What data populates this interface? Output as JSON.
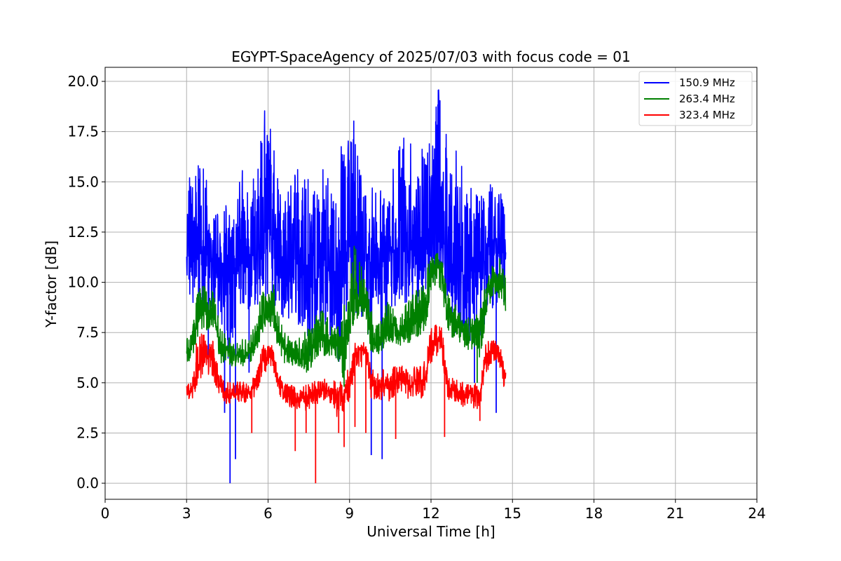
{
  "chart_data": {
    "type": "line",
    "title": "EGYPT-SpaceAgency of 2025/07/03 with focus code = 01",
    "xlabel": "Universal Time [h]",
    "ylabel": "Y-factor [dB]",
    "xlim": [
      0,
      24
    ],
    "ylim": [
      -0.8,
      20.7
    ],
    "xticks": [
      0,
      3,
      6,
      9,
      12,
      15,
      18,
      21,
      24
    ],
    "xtick_labels": [
      "0",
      "3",
      "6",
      "9",
      "12",
      "15",
      "18",
      "21",
      "24"
    ],
    "yticks": [
      0,
      2.5,
      5,
      7.5,
      10,
      12.5,
      15,
      17.5,
      20
    ],
    "ytick_labels": [
      "0.0",
      "2.5",
      "5.0",
      "7.5",
      "10.0",
      "12.5",
      "15.0",
      "17.5",
      "20.0"
    ],
    "grid": true,
    "legend_position": "top-right",
    "series": [
      {
        "name": "150.9 MHz",
        "color": "#0000ff",
        "x": [
          3.0,
          3.1,
          3.2,
          3.4,
          3.6,
          3.8,
          4.0,
          4.2,
          4.4,
          4.6,
          4.8,
          5.0,
          5.2,
          5.4,
          5.6,
          5.8,
          6.0,
          6.2,
          6.4,
          6.6,
          6.8,
          7.0,
          7.2,
          7.4,
          7.6,
          7.8,
          8.0,
          8.2,
          8.4,
          8.6,
          8.8,
          9.0,
          9.2,
          9.4,
          9.6,
          9.8,
          10.0,
          10.2,
          10.4,
          10.6,
          10.8,
          11.0,
          11.2,
          11.4,
          11.6,
          11.8,
          12.0,
          12.2,
          12.4,
          12.6,
          12.8,
          13.0,
          13.2,
          13.4,
          13.6,
          13.8,
          14.0,
          14.2,
          14.4,
          14.6,
          14.75
        ],
        "mean": [
          11.5,
          12.2,
          12.0,
          11.8,
          11.6,
          11.5,
          11.0,
          10.8,
          11.0,
          10.5,
          11.2,
          11.6,
          11.2,
          11.5,
          11.8,
          12.0,
          12.5,
          12.2,
          11.6,
          11.0,
          10.8,
          11.2,
          11.0,
          10.8,
          10.5,
          10.6,
          11.0,
          10.8,
          10.5,
          10.2,
          11.0,
          11.8,
          12.0,
          11.5,
          11.2,
          11.0,
          11.3,
          11.0,
          11.2,
          11.5,
          11.8,
          12.0,
          12.2,
          11.8,
          11.5,
          12.0,
          12.5,
          12.8,
          12.3,
          11.8,
          11.2,
          10.8,
          10.5,
          10.6,
          10.8,
          10.5,
          11.5,
          12.0,
          12.2,
          11.8,
          11.5
        ],
        "upper": [
          13.5,
          15.6,
          14.5,
          16.7,
          15.8,
          15.5,
          14.2,
          13.0,
          14.4,
          13.8,
          13.5,
          15.9,
          14.6,
          15.0,
          16.6,
          18.5,
          18.6,
          17.0,
          15.0,
          14.8,
          14.4,
          16.5,
          14.5,
          16.0,
          14.0,
          15.3,
          16.5,
          15.5,
          14.2,
          15.0,
          18.8,
          16.5,
          19.0,
          15.8,
          14.5,
          14.5,
          15.8,
          14.2,
          14.5,
          15.6,
          16.5,
          17.5,
          17.3,
          15.6,
          16.0,
          18.1,
          17.0,
          19.7,
          19.4,
          16.8,
          15.0,
          18.6,
          14.2,
          14.5,
          15.0,
          14.2,
          14.5,
          15.0,
          15.2,
          14.8,
          13.0
        ],
        "lower": [
          10.0,
          9.5,
          9.0,
          9.0,
          8.6,
          8.5,
          8.5,
          8.0,
          7.5,
          5.5,
          8.0,
          9.0,
          8.5,
          9.0,
          8.7,
          9.0,
          9.5,
          9.0,
          8.5,
          7.8,
          8.0,
          7.7,
          8.0,
          7.5,
          6.0,
          7.0,
          8.0,
          7.5,
          7.2,
          6.0,
          7.5,
          9.0,
          8.5,
          8.5,
          7.5,
          7.0,
          8.0,
          7.5,
          8.0,
          8.5,
          8.8,
          9.0,
          9.0,
          8.5,
          8.0,
          9.5,
          9.0,
          10.0,
          9.5,
          8.5,
          7.5,
          7.5,
          7.0,
          7.0,
          7.5,
          7.0,
          8.0,
          8.5,
          9.0,
          8.5,
          9.0
        ],
        "dips": [
          [
            4.6,
            0.0
          ],
          [
            4.8,
            1.2
          ],
          [
            9.8,
            1.4
          ],
          [
            10.2,
            1.2
          ],
          [
            3.8,
            6.0
          ],
          [
            4.4,
            3.5
          ],
          [
            14.4,
            3.5
          ],
          [
            13.6,
            5.0
          ],
          [
            5.3,
            5.5
          ]
        ]
      },
      {
        "name": "263.4 MHz",
        "color": "#008000",
        "x": [
          3.0,
          3.2,
          3.4,
          3.6,
          3.8,
          4.0,
          4.2,
          4.4,
          4.6,
          4.8,
          5.0,
          5.2,
          5.4,
          5.6,
          5.8,
          6.0,
          6.2,
          6.4,
          6.6,
          6.8,
          7.0,
          7.2,
          7.4,
          7.6,
          7.8,
          8.0,
          8.2,
          8.4,
          8.6,
          8.8,
          9.0,
          9.2,
          9.4,
          9.6,
          9.8,
          10.0,
          10.2,
          10.4,
          10.6,
          10.8,
          11.0,
          11.2,
          11.4,
          11.6,
          11.8,
          12.0,
          12.2,
          12.4,
          12.6,
          12.8,
          13.0,
          13.2,
          13.4,
          13.6,
          13.8,
          14.0,
          14.2,
          14.4,
          14.6,
          14.75
        ],
        "mean": [
          6.5,
          6.8,
          8.0,
          8.6,
          8.5,
          8.2,
          7.0,
          6.5,
          6.5,
          6.4,
          6.3,
          6.4,
          6.6,
          7.5,
          8.2,
          8.5,
          8.6,
          7.5,
          6.8,
          6.4,
          6.3,
          6.4,
          6.5,
          6.6,
          6.9,
          7.2,
          7.0,
          6.8,
          7.0,
          7.3,
          8.0,
          9.2,
          9.6,
          8.8,
          7.5,
          6.8,
          7.2,
          7.5,
          7.6,
          7.5,
          7.6,
          7.8,
          8.0,
          8.2,
          8.5,
          10.6,
          10.8,
          10.5,
          8.2,
          8.0,
          7.8,
          7.5,
          7.3,
          7.4,
          7.5,
          9.0,
          10.0,
          10.2,
          10.0,
          9.5
        ],
        "upper": [
          7.2,
          7.5,
          9.5,
          10.0,
          9.8,
          9.5,
          8.0,
          7.5,
          7.2,
          7.0,
          7.2,
          7.2,
          7.4,
          8.5,
          9.6,
          9.3,
          9.9,
          8.5,
          7.6,
          7.2,
          7.1,
          7.3,
          7.6,
          7.8,
          8.4,
          8.6,
          8.5,
          7.6,
          8.0,
          9.0,
          9.5,
          12.4,
          11.0,
          10.0,
          8.8,
          8.0,
          8.6,
          9.0,
          8.8,
          8.7,
          8.8,
          9.1,
          9.5,
          9.8,
          10.2,
          11.8,
          11.5,
          11.2,
          9.5,
          9.1,
          8.7,
          8.5,
          8.2,
          8.3,
          8.5,
          10.0,
          10.6,
          11.5,
          11.0,
          10.5
        ],
        "lower": [
          6.0,
          6.2,
          7.2,
          7.8,
          7.5,
          7.0,
          6.0,
          6.0,
          5.8,
          5.8,
          5.8,
          5.9,
          6.0,
          6.5,
          7.5,
          7.8,
          7.8,
          6.5,
          6.0,
          5.8,
          5.9,
          5.8,
          5.5,
          5.8,
          6.0,
          6.4,
          6.2,
          6.2,
          6.0,
          5.0,
          7.0,
          8.0,
          8.5,
          7.8,
          6.5,
          6.2,
          6.6,
          6.8,
          6.8,
          6.8,
          7.0,
          7.0,
          7.2,
          7.4,
          7.6,
          9.5,
          10.0,
          9.5,
          7.5,
          7.2,
          7.0,
          6.8,
          6.5,
          6.7,
          5.8,
          8.0,
          9.0,
          9.5,
          9.0,
          8.5
        ],
        "dips": [
          [
            8.8,
            4.8
          ],
          [
            13.7,
            5.0
          ]
        ]
      },
      {
        "name": "323.4 MHz",
        "color": "#ff0000",
        "x": [
          3.0,
          3.2,
          3.4,
          3.6,
          3.8,
          4.0,
          4.2,
          4.4,
          4.6,
          4.8,
          5.0,
          5.2,
          5.4,
          5.6,
          5.8,
          6.0,
          6.2,
          6.4,
          6.6,
          6.8,
          7.0,
          7.2,
          7.4,
          7.6,
          7.8,
          8.0,
          8.2,
          8.4,
          8.6,
          8.8,
          9.0,
          9.2,
          9.4,
          9.6,
          9.8,
          10.0,
          10.2,
          10.4,
          10.6,
          10.8,
          11.0,
          11.2,
          11.4,
          11.6,
          11.8,
          12.0,
          12.2,
          12.4,
          12.6,
          12.8,
          13.0,
          13.2,
          13.4,
          13.6,
          13.8,
          14.0,
          14.2,
          14.4,
          14.6,
          14.75
        ],
        "mean": [
          4.5,
          4.6,
          5.8,
          6.4,
          6.3,
          6.0,
          5.0,
          4.5,
          4.4,
          4.5,
          4.6,
          4.5,
          4.6,
          5.2,
          6.2,
          6.3,
          6.2,
          5.0,
          4.5,
          4.2,
          4.2,
          4.2,
          4.2,
          4.3,
          4.5,
          4.6,
          4.6,
          4.5,
          4.2,
          4.4,
          5.0,
          6.5,
          6.7,
          6.5,
          5.0,
          4.8,
          5.0,
          4.8,
          5.0,
          5.2,
          5.0,
          4.9,
          5.0,
          5.0,
          5.2,
          7.0,
          7.2,
          7.0,
          4.8,
          4.6,
          4.5,
          4.4,
          4.5,
          4.4,
          4.4,
          6.2,
          6.5,
          6.5,
          6.3,
          5.0
        ],
        "upper": [
          4.9,
          5.0,
          7.5,
          7.4,
          7.3,
          7.1,
          5.6,
          5.1,
          5.0,
          5.0,
          5.1,
          5.0,
          5.1,
          6.0,
          6.9,
          6.8,
          6.9,
          5.6,
          5.0,
          4.9,
          4.8,
          4.8,
          4.9,
          5.0,
          5.2,
          5.2,
          5.3,
          5.2,
          5.0,
          5.3,
          5.8,
          7.0,
          7.1,
          7.0,
          5.7,
          5.5,
          5.7,
          5.5,
          5.8,
          5.9,
          5.8,
          5.6,
          5.8,
          5.9,
          6.1,
          7.8,
          7.9,
          7.8,
          5.6,
          5.2,
          5.1,
          5.0,
          5.1,
          5.0,
          5.0,
          6.9,
          7.2,
          7.1,
          6.8,
          5.8
        ],
        "lower": [
          4.1,
          4.0,
          5.0,
          5.4,
          5.3,
          5.0,
          4.4,
          4.0,
          3.9,
          4.0,
          4.1,
          4.0,
          4.1,
          4.5,
          5.5,
          5.6,
          5.5,
          4.4,
          4.0,
          3.8,
          3.7,
          3.7,
          3.6,
          3.8,
          3.9,
          4.0,
          4.0,
          3.9,
          3.0,
          3.5,
          4.2,
          5.5,
          5.8,
          5.6,
          4.2,
          4.0,
          4.2,
          4.0,
          4.2,
          4.4,
          4.2,
          4.1,
          4.2,
          4.2,
          4.4,
          6.0,
          6.3,
          6.0,
          4.0,
          4.0,
          3.9,
          3.8,
          3.8,
          3.7,
          3.7,
          5.4,
          5.8,
          5.8,
          5.5,
          3.7
        ],
        "dips": [
          [
            7.75,
            0.0
          ],
          [
            7.0,
            1.6
          ],
          [
            8.8,
            1.8
          ],
          [
            8.6,
            2.5
          ],
          [
            7.4,
            2.5
          ],
          [
            9.2,
            2.8
          ],
          [
            9.6,
            2.5
          ],
          [
            10.7,
            2.2
          ],
          [
            12.5,
            2.3
          ],
          [
            5.4,
            2.5
          ],
          [
            13.8,
            3.1
          ]
        ]
      }
    ]
  }
}
